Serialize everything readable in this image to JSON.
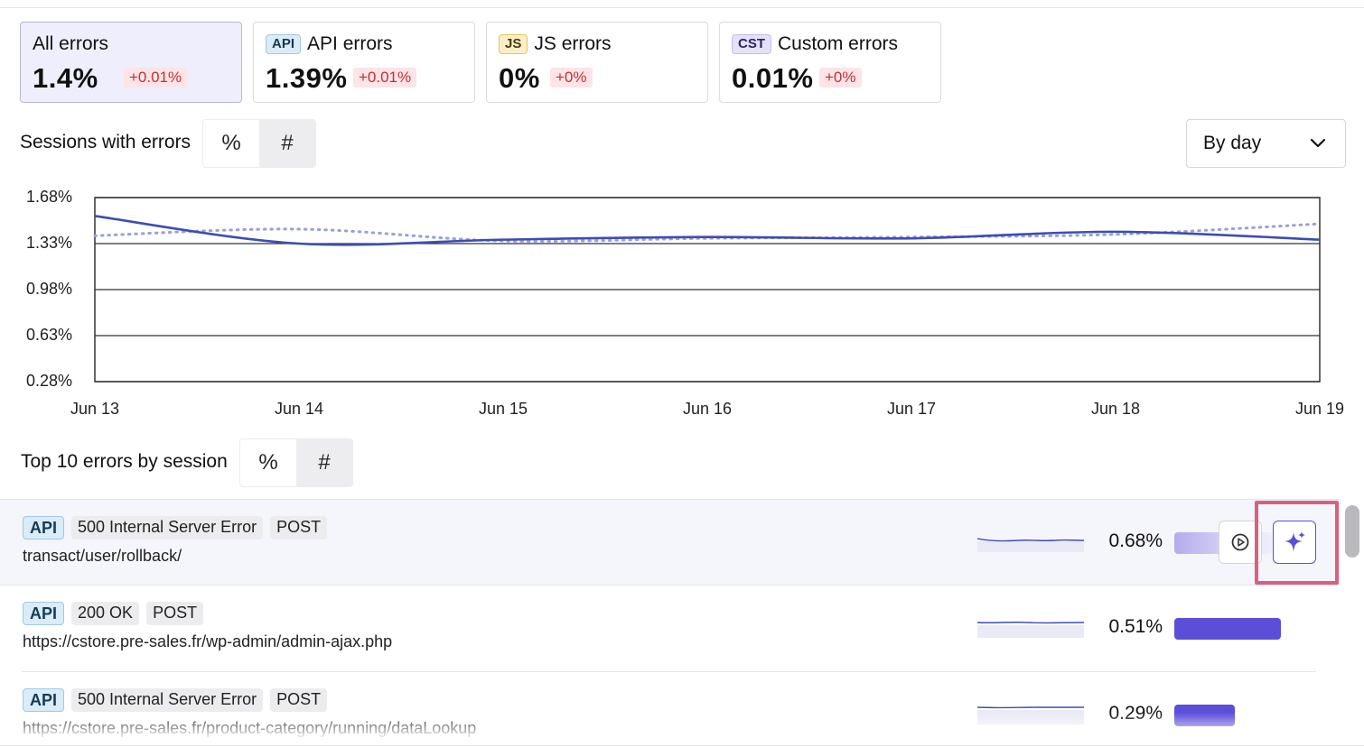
{
  "cards": [
    {
      "title": "All errors",
      "tag": "",
      "value": "1.4%",
      "delta": "+0.01%",
      "active": true
    },
    {
      "title": "API errors",
      "tag": "API",
      "value": "1.39%",
      "delta": "+0.01%",
      "active": false
    },
    {
      "title": "JS errors",
      "tag": "JS",
      "value": "0%",
      "delta": "+0%",
      "active": false
    },
    {
      "title": "Custom errors",
      "tag": "CST",
      "value": "0.01%",
      "delta": "+0%",
      "active": false
    }
  ],
  "sessions_section": {
    "label": "Sessions with errors",
    "toggle_pct": "%",
    "toggle_count": "#"
  },
  "granularity": {
    "selected": "By day"
  },
  "chart_data": {
    "type": "line",
    "y_ticks": [
      "1.68%",
      "1.33%",
      "0.98%",
      "0.63%",
      "0.28%"
    ],
    "ylim": [
      0.28,
      1.68
    ],
    "x_ticks": [
      "Jun 13",
      "Jun 14",
      "Jun 15",
      "Jun 16",
      "Jun 17",
      "Jun 18",
      "Jun 19"
    ],
    "series": [
      {
        "style": "solid",
        "color": "#3b4db3",
        "x": [
          "Jun 13",
          "Jun 14",
          "Jun 15",
          "Jun 16",
          "Jun 17",
          "Jun 18",
          "Jun 19"
        ],
        "values": [
          1.54,
          1.33,
          1.36,
          1.38,
          1.37,
          1.42,
          1.36
        ]
      },
      {
        "style": "dotted",
        "color": "#9a9ee0",
        "x": [
          "Jun 13",
          "Jun 14",
          "Jun 15",
          "Jun 16",
          "Jun 17",
          "Jun 18",
          "Jun 19"
        ],
        "values": [
          1.39,
          1.44,
          1.35,
          1.37,
          1.38,
          1.4,
          1.48
        ]
      }
    ]
  },
  "top_errors_section": {
    "label": "Top 10 errors by session",
    "toggle_pct": "%",
    "toggle_count": "#"
  },
  "errors": [
    {
      "type": "API",
      "status": "500 Internal Server Error",
      "method": "POST",
      "url": "transact/user/rollback/",
      "pct": "0.68%",
      "share": 0.68,
      "bar_style": "fade"
    },
    {
      "type": "API",
      "status": "200 OK",
      "method": "POST",
      "url": "https://cstore.pre-sales.fr/wp-admin/admin-ajax.php",
      "pct": "0.51%",
      "share": 0.51,
      "bar_style": "solid"
    },
    {
      "type": "API",
      "status": "500 Internal Server Error",
      "method": "POST",
      "url": "https://cstore.pre-sales.fr/product-category/running/dataLookup",
      "pct": "0.29%",
      "share": 0.29,
      "bar_style": "solid"
    }
  ],
  "icons": {
    "play": "play-circle-icon",
    "ai": "sparkle-icon",
    "chevron": "chevron-down-icon"
  },
  "colors": {
    "accent": "#5b4fd8",
    "delta_red": "#c0303a",
    "highlight_frame": "#d9607e"
  }
}
